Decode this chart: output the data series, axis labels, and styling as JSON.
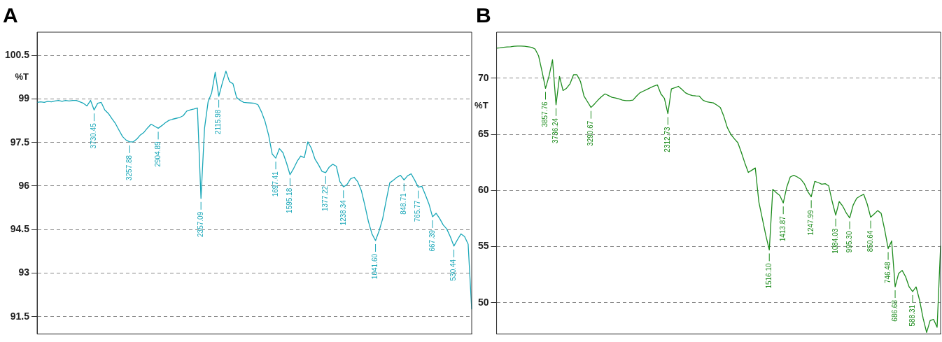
{
  "chart_data": [
    {
      "type": "line",
      "title": "A",
      "ylabel": "%T",
      "color": "#1aa7b8",
      "marker": "none",
      "grid": "y",
      "tick_labels": "y",
      "ylim": [
        90.9,
        101.3
      ],
      "yticks": [
        91.5,
        93,
        94.5,
        96,
        97.5,
        99,
        100.5
      ],
      "categories": [
        null,
        null,
        null,
        null,
        null,
        null,
        null,
        null,
        null,
        null,
        null,
        null,
        null,
        null,
        null,
        null,
        null,
        null,
        null,
        null,
        null,
        null,
        null,
        null,
        null,
        null,
        null,
        null,
        null,
        null,
        null,
        null,
        null,
        null,
        null,
        null,
        null,
        null,
        null,
        null,
        null,
        null,
        null,
        null,
        null,
        null,
        null,
        null,
        null,
        null,
        null,
        null,
        null,
        null,
        null,
        null,
        null,
        null,
        null,
        null,
        null,
        null,
        null,
        null,
        null,
        null,
        null,
        null,
        null,
        null,
        null,
        null,
        null,
        null,
        null,
        null,
        null,
        null,
        null,
        null,
        null,
        null,
        null,
        null,
        null,
        null,
        null,
        null,
        null,
        null,
        null,
        null,
        null,
        null,
        null,
        null,
        null,
        null,
        null,
        null,
        null,
        null,
        null,
        null,
        null,
        null,
        null,
        null,
        null,
        null,
        null,
        null,
        null,
        null,
        null,
        null,
        null,
        null,
        null,
        null,
        null,
        null,
        null
      ],
      "values": [
        98.88,
        98.9,
        98.88,
        98.92,
        98.9,
        98.93,
        98.95,
        98.92,
        98.95,
        98.93,
        98.95,
        98.95,
        98.9,
        98.85,
        98.76,
        98.95,
        98.62,
        98.85,
        98.88,
        98.62,
        98.5,
        98.32,
        98.15,
        97.92,
        97.7,
        97.58,
        97.52,
        97.52,
        97.62,
        97.76,
        97.85,
        98.0,
        98.13,
        98.06,
        97.99,
        98.08,
        98.18,
        98.26,
        98.3,
        98.33,
        98.36,
        98.42,
        98.58,
        98.62,
        98.65,
        98.69,
        95.57,
        97.99,
        98.9,
        99.21,
        99.92,
        99.09,
        99.55,
        99.96,
        99.6,
        99.52,
        99.05,
        98.95,
        98.88,
        98.87,
        98.86,
        98.85,
        98.8,
        98.55,
        98.22,
        97.75,
        97.1,
        96.96,
        97.29,
        97.15,
        96.8,
        96.39,
        96.6,
        96.85,
        97.03,
        96.98,
        97.52,
        97.3,
        96.93,
        96.73,
        96.5,
        96.46,
        96.65,
        96.75,
        96.68,
        96.15,
        95.97,
        96.05,
        96.25,
        96.3,
        96.15,
        95.85,
        95.34,
        94.78,
        94.35,
        94.12,
        94.45,
        94.87,
        95.5,
        96.11,
        96.2,
        96.3,
        96.37,
        96.21,
        96.35,
        96.42,
        96.2,
        95.96,
        95.99,
        95.7,
        95.38,
        94.94,
        95.06,
        94.88,
        94.66,
        94.52,
        94.25,
        93.93,
        94.15,
        94.35,
        94.26,
        94.0,
        91.75
      ],
      "annotations": [
        {
          "text": "3730.45",
          "y": 98.62
        },
        {
          "text": "3257.88",
          "y": 97.52
        },
        {
          "text": "2904.89",
          "y": 97.99
        },
        {
          "text": "2357.09",
          "y": 95.57
        },
        {
          "text": "2115.98",
          "y": 99.09
        },
        {
          "text": "1697.41",
          "y": 96.96
        },
        {
          "text": "1595.18",
          "y": 96.39
        },
        {
          "text": "1377.22",
          "y": 96.46
        },
        {
          "text": "1238.34",
          "y": 95.97
        },
        {
          "text": "1041.60",
          "y": 94.12
        },
        {
          "text": "848.71",
          "y": 96.21
        },
        {
          "text": "765.77",
          "y": 95.96
        },
        {
          "text": "667.39",
          "y": 94.94
        },
        {
          "text": "530.44",
          "y": 93.93
        }
      ]
    },
    {
      "type": "line",
      "title": "B",
      "ylabel": "%T",
      "color": "#1e8c1e",
      "marker": "none",
      "grid": "y",
      "tick_labels": "y",
      "ylim": [
        47.2,
        74.1
      ],
      "yticks": [
        50,
        55,
        60,
        65,
        70
      ],
      "categories": [
        null,
        null,
        null,
        null,
        null,
        null,
        null,
        null,
        null,
        null,
        null,
        null,
        null,
        null,
        null,
        null,
        null,
        null,
        null,
        null,
        null,
        null,
        null,
        null,
        null,
        null,
        null,
        null,
        null,
        null,
        null,
        null,
        null,
        null,
        null,
        null,
        null,
        null,
        null,
        null,
        null,
        null,
        null,
        null,
        null,
        null,
        null,
        null,
        null,
        null,
        null,
        null,
        null,
        null,
        null,
        null,
        null,
        null,
        null,
        null,
        null,
        null,
        null,
        null,
        null,
        null,
        null,
        null,
        null,
        null,
        null,
        null,
        null,
        null,
        null,
        null,
        null,
        null,
        null,
        null,
        null,
        null,
        null,
        null,
        null,
        null,
        null,
        null,
        null,
        null,
        null,
        null,
        null,
        null,
        null,
        null,
        null,
        null,
        null,
        null,
        null,
        null,
        null,
        null,
        null,
        null,
        null,
        null,
        null,
        null,
        null,
        null,
        null,
        null,
        null,
        null,
        null,
        null,
        null,
        null,
        null,
        null,
        null,
        null,
        null,
        null,
        null,
        null
      ],
      "values": [
        72.67,
        72.7,
        72.75,
        72.78,
        72.8,
        72.84,
        72.86,
        72.86,
        72.84,
        72.8,
        72.75,
        72.6,
        72.0,
        70.6,
        69.09,
        70.2,
        71.64,
        67.63,
        70.15,
        68.9,
        69.1,
        69.5,
        70.3,
        70.3,
        69.7,
        68.4,
        67.9,
        67.39,
        67.7,
        68.05,
        68.35,
        68.6,
        68.45,
        68.3,
        68.24,
        68.15,
        68.05,
        68.0,
        68.0,
        68.05,
        68.4,
        68.7,
        68.85,
        69.0,
        69.15,
        69.3,
        69.4,
        68.6,
        68.2,
        66.84,
        69.05,
        69.15,
        69.27,
        69.0,
        68.7,
        68.55,
        68.45,
        68.42,
        68.4,
        68.05,
        67.9,
        67.85,
        67.8,
        67.6,
        67.38,
        66.6,
        65.6,
        65.0,
        64.6,
        64.25,
        63.4,
        62.45,
        61.6,
        61.8,
        62.0,
        59.0,
        57.5,
        56.0,
        54.69,
        60.1,
        59.8,
        59.55,
        58.88,
        60.3,
        61.2,
        61.35,
        61.2,
        61.0,
        60.6,
        59.9,
        59.43,
        60.8,
        60.7,
        60.55,
        60.6,
        60.4,
        59.0,
        57.79,
        59.0,
        58.6,
        58.0,
        57.55,
        58.7,
        59.3,
        59.5,
        59.65,
        58.8,
        57.61,
        57.9,
        58.2,
        57.95,
        56.5,
        54.81,
        55.5,
        51.41,
        52.6,
        52.87,
        52.3,
        51.4,
        50.98,
        51.4,
        50.2,
        48.6,
        47.34,
        48.4,
        48.5,
        47.8,
        55.06
      ],
      "annotations": [
        {
          "text": "3857.76",
          "y": 69.09
        },
        {
          "text": "3736.24",
          "y": 67.63
        },
        {
          "text": "3290.67",
          "y": 67.39
        },
        {
          "text": "2312.73",
          "y": 66.84
        },
        {
          "text": "1516.10",
          "y": 54.69
        },
        {
          "text": "1413.87",
          "y": 58.88
        },
        {
          "text": "1247.99",
          "y": 59.43
        },
        {
          "text": "1084.03",
          "y": 57.79
        },
        {
          "text": "995.30",
          "y": 57.55
        },
        {
          "text": "850.64",
          "y": 57.61
        },
        {
          "text": "746.48",
          "y": 54.81
        },
        {
          "text": "686.68",
          "y": 51.41
        },
        {
          "text": "588.31",
          "y": 50.98
        }
      ]
    }
  ]
}
